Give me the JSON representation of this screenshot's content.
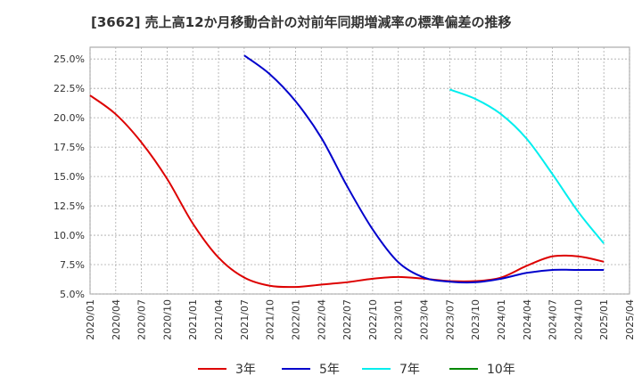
{
  "chart_data": {
    "type": "line",
    "title": "[3662]  売上高12か月移動合計の対前年同期増減率の標準偏差の推移",
    "xlabel": "",
    "ylabel": "",
    "x_ticks": [
      "2020/01",
      "2020/04",
      "2020/07",
      "2020/10",
      "2021/01",
      "2021/04",
      "2021/07",
      "2021/10",
      "2022/01",
      "2022/04",
      "2022/07",
      "2022/10",
      "2023/01",
      "2023/04",
      "2023/07",
      "2023/10",
      "2024/01",
      "2024/04",
      "2024/07",
      "2024/10",
      "2025/01",
      "2025/04"
    ],
    "y_ticks": [
      "5.0%",
      "7.5%",
      "10.0%",
      "12.5%",
      "15.0%",
      "17.5%",
      "20.0%",
      "22.5%",
      "25.0%"
    ],
    "ylim": [
      5.0,
      26.0
    ],
    "xlim": [
      "2020/01",
      "2025/04"
    ],
    "grid": true,
    "legend_position": "bottom",
    "series": [
      {
        "name": "3年",
        "color": "#dd0000",
        "points": [
          [
            "2020/01",
            21.9
          ],
          [
            "2020/04",
            20.3
          ],
          [
            "2020/07",
            17.9
          ],
          [
            "2020/10",
            14.8
          ],
          [
            "2021/01",
            11.0
          ],
          [
            "2021/04",
            8.1
          ],
          [
            "2021/07",
            6.4
          ],
          [
            "2021/10",
            5.7
          ],
          [
            "2022/01",
            5.6
          ],
          [
            "2022/04",
            5.8
          ],
          [
            "2022/07",
            6.0
          ],
          [
            "2022/10",
            6.3
          ],
          [
            "2023/01",
            6.45
          ],
          [
            "2023/04",
            6.3
          ],
          [
            "2023/07",
            6.1
          ],
          [
            "2023/10",
            6.1
          ],
          [
            "2024/01",
            6.4
          ],
          [
            "2024/04",
            7.4
          ],
          [
            "2024/07",
            8.2
          ],
          [
            "2024/10",
            8.2
          ],
          [
            "2025/01",
            7.75
          ]
        ]
      },
      {
        "name": "5年",
        "color": "#0000cc",
        "points": [
          [
            "2021/07",
            25.3
          ],
          [
            "2021/10",
            23.7
          ],
          [
            "2022/01",
            21.4
          ],
          [
            "2022/04",
            18.3
          ],
          [
            "2022/07",
            14.2
          ],
          [
            "2022/10",
            10.5
          ],
          [
            "2023/01",
            7.7
          ],
          [
            "2023/04",
            6.4
          ],
          [
            "2023/07",
            6.05
          ],
          [
            "2023/10",
            6.0
          ],
          [
            "2024/01",
            6.3
          ],
          [
            "2024/04",
            6.8
          ],
          [
            "2024/07",
            7.05
          ],
          [
            "2024/10",
            7.05
          ],
          [
            "2025/01",
            7.05
          ]
        ]
      },
      {
        "name": "7年",
        "color": "#00eeee",
        "points": [
          [
            "2023/07",
            22.4
          ],
          [
            "2023/10",
            21.6
          ],
          [
            "2024/01",
            20.3
          ],
          [
            "2024/04",
            18.2
          ],
          [
            "2024/07",
            15.2
          ],
          [
            "2024/10",
            12.0
          ],
          [
            "2025/01",
            9.3
          ]
        ]
      },
      {
        "name": "10年",
        "color": "#008800",
        "points": []
      }
    ]
  }
}
